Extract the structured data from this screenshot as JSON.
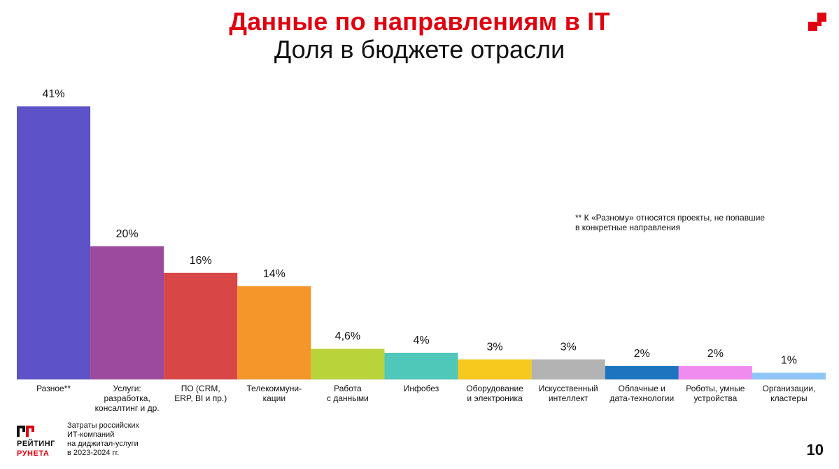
{
  "header": {
    "title": "Данные по направлениям в IT",
    "subtitle": "Доля в бюджете отрасли"
  },
  "note": {
    "line1": "** К «Разному» относятся проекты, не попавшие",
    "line2": "в конкретные направления"
  },
  "footer": {
    "logo_line1": "РЕЙТИНГ",
    "logo_line2": "РУНЕТА",
    "text_lines": [
      "Затраты российских",
      "ИТ-компаний",
      "на диджитал-услуги",
      "в 2023-2024 гг."
    ],
    "page_number": "10"
  },
  "colors": {
    "brand_red": "#e1000f"
  },
  "chart_data": {
    "type": "bar",
    "categories": [
      [
        "Разное**"
      ],
      [
        "Услуги:",
        "разработка,",
        "консалтинг и др."
      ],
      [
        "ПО (CRM,",
        "ERP, BI и пр.)"
      ],
      [
        "Телекоммуни-",
        "кации"
      ],
      [
        "Работа",
        "с данными"
      ],
      [
        "Инфобез"
      ],
      [
        "Оборудование",
        "и электроника"
      ],
      [
        "Искусственный",
        "интеллект"
      ],
      [
        "Облачные и",
        "дата-технологии"
      ],
      [
        "Роботы, умные",
        "устройства"
      ],
      [
        "Организации,",
        "кластеры"
      ]
    ],
    "values": [
      41,
      20,
      16,
      14,
      4.6,
      4,
      3,
      3,
      2,
      2,
      1
    ],
    "labels": [
      "41%",
      "20%",
      "16%",
      "14%",
      "4,6%",
      "4%",
      "3%",
      "3%",
      "2%",
      "2%",
      "1%"
    ],
    "colors": [
      "#5d52c8",
      "#9b4a9d",
      "#d94646",
      "#f5962a",
      "#b8d43a",
      "#4fc7b9",
      "#f7c81e",
      "#b3b3b3",
      "#1e74bf",
      "#f08cf0",
      "#8ec7f7"
    ],
    "ylim": [
      0,
      41
    ],
    "grid": false,
    "legend": "none"
  }
}
